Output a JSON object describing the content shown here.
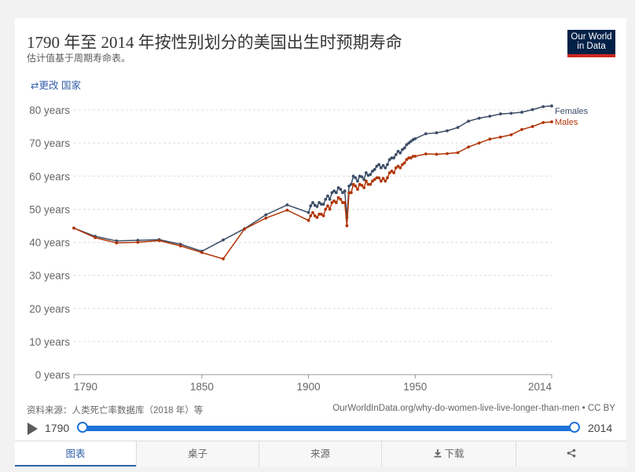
{
  "header": {
    "title": "1790 年至 2014 年按性别划分的美国出生时预期寿命",
    "subtitle": "估计值基于周期寿命表。",
    "change_country": "⇄更改 国家",
    "logo_line1": "Our World",
    "logo_line2": "in Data"
  },
  "footer": {
    "source": "资料来源：人类死亡率数据库（2018 年）等",
    "url": "OurWorldInData.org/why-do-women-live-live-longer-than-men • CC BY"
  },
  "timeline": {
    "start_label": "1790",
    "end_label": "2014"
  },
  "tabs": [
    {
      "label": "图表",
      "icon": ""
    },
    {
      "label": "桌子",
      "icon": ""
    },
    {
      "label": "来源",
      "icon": ""
    },
    {
      "label": "下载",
      "icon": "download-icon"
    },
    {
      "label": "",
      "icon": "share-icon"
    }
  ],
  "colors": {
    "females": "#3c4e66",
    "males": "#b13507",
    "grid": "#dddddd"
  },
  "chart_data": {
    "type": "line",
    "title": "1790 年至 2014 年按性别划分的美国出生时预期寿命",
    "xlim": [
      1790,
      2014
    ],
    "ylim": [
      0,
      80
    ],
    "x_ticks": [
      1790,
      1850,
      1900,
      1950,
      2014
    ],
    "x_tick_labels": [
      "1790",
      "1850",
      "1900",
      "1950",
      "2014"
    ],
    "y_ticks": [
      0,
      10,
      20,
      30,
      40,
      50,
      60,
      70,
      80
    ],
    "y_tick_labels": [
      "0 years",
      "10 years",
      "20 years",
      "30 years",
      "40 years",
      "50 years",
      "60 years",
      "70 years",
      "80 years"
    ],
    "grid": true,
    "legend": "right, at line ends",
    "series": [
      {
        "name": "Females",
        "color": "#3c4e66",
        "points": [
          [
            1790,
            44.3
          ],
          [
            1800,
            41.8
          ],
          [
            1810,
            40.4
          ],
          [
            1820,
            40.6
          ],
          [
            1830,
            40.8
          ],
          [
            1840,
            39.4
          ],
          [
            1850,
            37.3
          ],
          [
            1860,
            40.7
          ],
          [
            1870,
            44.1
          ],
          [
            1880,
            48.3
          ],
          [
            1890,
            51.3
          ],
          [
            1900,
            49.0
          ],
          [
            1901,
            51.0
          ],
          [
            1902,
            52.0
          ],
          [
            1903,
            51.2
          ],
          [
            1904,
            50.8
          ],
          [
            1905,
            52.0
          ],
          [
            1906,
            51.5
          ],
          [
            1907,
            51.5
          ],
          [
            1908,
            53.0
          ],
          [
            1909,
            54.0
          ],
          [
            1910,
            53.0
          ],
          [
            1911,
            55.0
          ],
          [
            1912,
            55.5
          ],
          [
            1913,
            55.0
          ],
          [
            1914,
            56.5
          ],
          [
            1915,
            56.0
          ],
          [
            1916,
            55.0
          ],
          [
            1917,
            55.5
          ],
          [
            1918,
            47.5
          ],
          [
            1919,
            57.0
          ],
          [
            1920,
            57.5
          ],
          [
            1921,
            60.0
          ],
          [
            1922,
            59.5
          ],
          [
            1923,
            58.5
          ],
          [
            1924,
            60.0
          ],
          [
            1925,
            59.8
          ],
          [
            1926,
            59.0
          ],
          [
            1927,
            61.0
          ],
          [
            1928,
            60.2
          ],
          [
            1929,
            60.5
          ],
          [
            1930,
            61.5
          ],
          [
            1931,
            62.0
          ],
          [
            1932,
            63.0
          ],
          [
            1933,
            63.5
          ],
          [
            1934,
            62.5
          ],
          [
            1935,
            63.2
          ],
          [
            1936,
            62.5
          ],
          [
            1937,
            63.5
          ],
          [
            1938,
            65.0
          ],
          [
            1939,
            65.5
          ],
          [
            1940,
            65.5
          ],
          [
            1941,
            66.5
          ],
          [
            1942,
            67.5
          ],
          [
            1943,
            67.0
          ],
          [
            1944,
            68.0
          ],
          [
            1945,
            68.5
          ],
          [
            1946,
            69.5
          ],
          [
            1947,
            70.0
          ],
          [
            1948,
            70.5
          ],
          [
            1949,
            71.0
          ],
          [
            1950,
            71.3
          ],
          [
            1955,
            72.8
          ],
          [
            1960,
            73.1
          ],
          [
            1965,
            73.7
          ],
          [
            1970,
            74.7
          ],
          [
            1975,
            76.6
          ],
          [
            1980,
            77.5
          ],
          [
            1985,
            78.1
          ],
          [
            1990,
            78.8
          ],
          [
            1995,
            79.0
          ],
          [
            2000,
            79.3
          ],
          [
            2005,
            80.1
          ],
          [
            2010,
            81.0
          ],
          [
            2014,
            81.2
          ]
        ]
      },
      {
        "name": "Males",
        "color": "#b13507",
        "points": [
          [
            1790,
            44.3
          ],
          [
            1800,
            41.4
          ],
          [
            1810,
            39.8
          ],
          [
            1820,
            40.0
          ],
          [
            1830,
            40.5
          ],
          [
            1840,
            38.9
          ],
          [
            1850,
            36.9
          ],
          [
            1860,
            35.0
          ],
          [
            1870,
            44.0
          ],
          [
            1880,
            47.3
          ],
          [
            1890,
            49.7
          ],
          [
            1900,
            46.6
          ],
          [
            1901,
            48.0
          ],
          [
            1902,
            49.0
          ],
          [
            1903,
            48.0
          ],
          [
            1904,
            47.5
          ],
          [
            1905,
            48.5
          ],
          [
            1906,
            48.5
          ],
          [
            1907,
            48.0
          ],
          [
            1908,
            50.0
          ],
          [
            1909,
            51.0
          ],
          [
            1910,
            50.0
          ],
          [
            1911,
            52.0
          ],
          [
            1912,
            52.5
          ],
          [
            1913,
            52.0
          ],
          [
            1914,
            53.5
          ],
          [
            1915,
            53.0
          ],
          [
            1916,
            52.0
          ],
          [
            1917,
            52.0
          ],
          [
            1918,
            45.0
          ],
          [
            1919,
            55.0
          ],
          [
            1920,
            55.0
          ],
          [
            1921,
            57.5
          ],
          [
            1922,
            57.0
          ],
          [
            1923,
            56.0
          ],
          [
            1924,
            57.5
          ],
          [
            1925,
            57.2
          ],
          [
            1926,
            56.5
          ],
          [
            1927,
            58.5
          ],
          [
            1928,
            57.5
          ],
          [
            1929,
            57.5
          ],
          [
            1930,
            58.5
          ],
          [
            1931,
            59.0
          ],
          [
            1932,
            59.5
          ],
          [
            1933,
            59.5
          ],
          [
            1934,
            58.5
          ],
          [
            1935,
            59.3
          ],
          [
            1936,
            58.5
          ],
          [
            1937,
            59.5
          ],
          [
            1938,
            61.0
          ],
          [
            1939,
            61.5
          ],
          [
            1940,
            61.0
          ],
          [
            1941,
            62.5
          ],
          [
            1942,
            63.0
          ],
          [
            1943,
            62.5
          ],
          [
            1944,
            63.5
          ],
          [
            1945,
            64.0
          ],
          [
            1946,
            65.0
          ],
          [
            1947,
            65.5
          ],
          [
            1948,
            65.5
          ],
          [
            1949,
            66.0
          ],
          [
            1950,
            66.0
          ],
          [
            1955,
            66.7
          ],
          [
            1960,
            66.6
          ],
          [
            1965,
            66.8
          ],
          [
            1970,
            67.1
          ],
          [
            1975,
            68.8
          ],
          [
            1980,
            70.0
          ],
          [
            1985,
            71.2
          ],
          [
            1990,
            71.8
          ],
          [
            1995,
            72.5
          ],
          [
            2000,
            74.1
          ],
          [
            2005,
            75.0
          ],
          [
            2010,
            76.2
          ],
          [
            2014,
            76.4
          ]
        ]
      }
    ]
  }
}
